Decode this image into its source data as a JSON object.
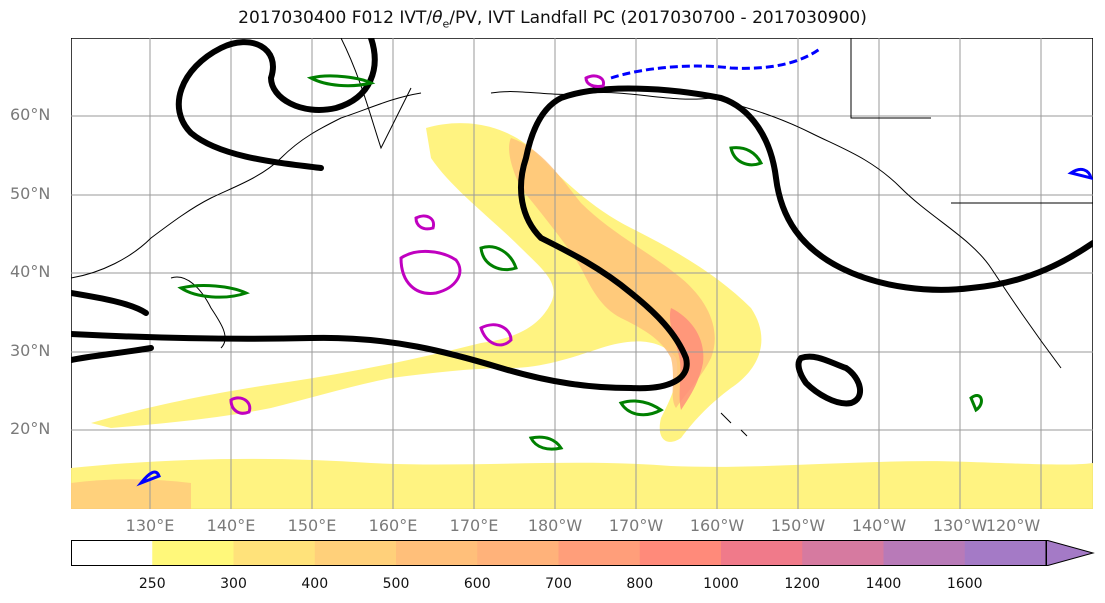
{
  "title_prefix": "2017030400 F012 IVT/",
  "title_theta": "θ",
  "title_theta_sub": "e",
  "title_suffix": "/PV, IVT Landfall PC (2017030700 - 2017030900)",
  "lat_labels": [
    "60°N",
    "50°N",
    "40°N",
    "30°N",
    "20°N"
  ],
  "lon_labels": [
    "130°E",
    "140°E",
    "150°E",
    "160°E",
    "170°E",
    "180°W",
    "170°W",
    "160°W",
    "150°W",
    "140°W",
    "130°W",
    "120°W"
  ],
  "colorbar": {
    "ticks": [
      "250",
      "300",
      "400",
      "500",
      "600",
      "700",
      "800",
      "1000",
      "1200",
      "1400",
      "1600"
    ],
    "colors": [
      "#ffffff",
      "#fff87a",
      "#ffe27a",
      "#ffd07a",
      "#ffbf7a",
      "#ffb27a",
      "#ff9e7a",
      "#ff8a7a",
      "#f07a8a",
      "#d67aa0",
      "#b87ab8",
      "#a47ac6"
    ]
  },
  "colors": {
    "ivt_low": "#fff27a",
    "ivt_mid": "#ffc27a",
    "ivt_high": "#ff8a7a",
    "theta_e_contour": "#000000",
    "pv_contour": "#008000",
    "pv_negative": "#0000ff",
    "magenta_contour": "#c000c0"
  }
}
